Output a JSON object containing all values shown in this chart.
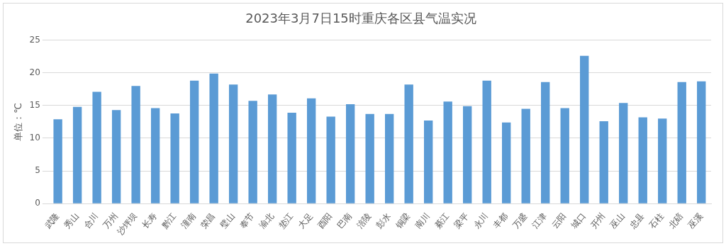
{
  "chart_data": {
    "type": "bar",
    "title": "2023年3月7日15时重庆各区县气温实况",
    "ylabel": "单位：℃",
    "categories": [
      "武隆",
      "秀山",
      "合川",
      "万州",
      "沙坪坝",
      "长寿",
      "黔江",
      "潼南",
      "荣昌",
      "璧山",
      "奉节",
      "渝北",
      "垫江",
      "大足",
      "酉阳",
      "巴南",
      "涪陵",
      "彭水",
      "铜梁",
      "南川",
      "綦江",
      "梁平",
      "永川",
      "丰都",
      "万盛",
      "江津",
      "云阳",
      "城口",
      "开州",
      "巫山",
      "忠县",
      "石柱",
      "北碚",
      "巫溪"
    ],
    "values": [
      12.9,
      14.8,
      17.1,
      14.3,
      18.0,
      14.6,
      13.8,
      18.8,
      19.9,
      18.2,
      15.7,
      16.7,
      13.9,
      16.1,
      13.3,
      15.2,
      13.7,
      13.7,
      18.2,
      12.7,
      15.6,
      14.9,
      18.8,
      12.4,
      14.5,
      18.6,
      14.6,
      22.6,
      12.6,
      15.4,
      13.2,
      13.0,
      18.6,
      18.7
    ],
    "color": "#5b9bd5",
    "ylim": [
      0,
      25
    ],
    "yticks": [
      0,
      5,
      10,
      15,
      20,
      25
    ],
    "grid": "y",
    "legend": false
  }
}
